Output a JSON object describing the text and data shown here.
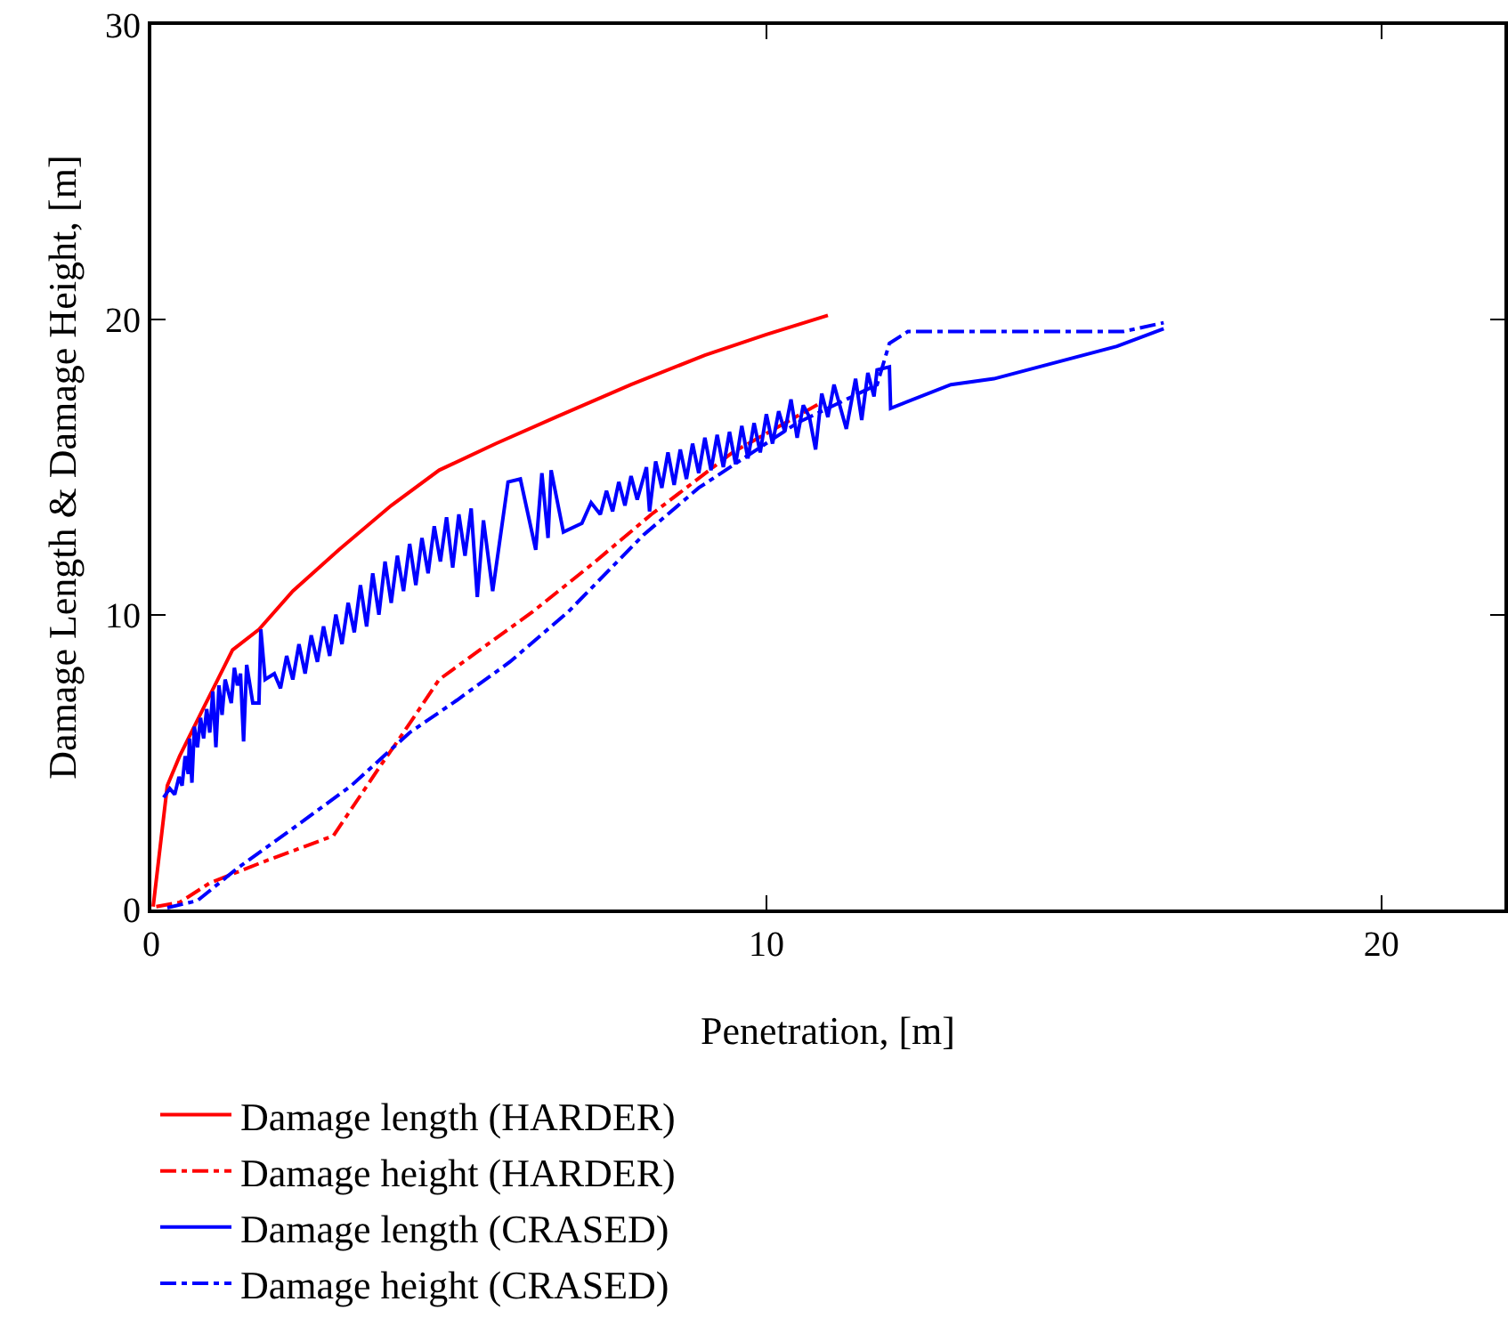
{
  "chart_data": {
    "type": "line",
    "xlabel": "Penetration, [m]",
    "ylabel": "Damage Length & Damage Height, [m]",
    "xlim": [
      0,
      22
    ],
    "xticks": [
      0,
      10,
      20
    ],
    "ylim": [
      0,
      30
    ],
    "yticks": [
      0,
      10,
      20,
      30
    ],
    "legend": "bottom",
    "marker": "none",
    "series": [
      {
        "name": "Damage length (HARDER)",
        "color": "#ff0000",
        "line_style": "solid",
        "x": [
          0.03,
          0.26,
          0.46,
          0.84,
          1.32,
          1.75,
          2.3,
          3.05,
          3.9,
          4.68,
          5.6,
          6.58,
          7.8,
          9.0,
          10.0,
          11.0
        ],
        "values": [
          0.1,
          4.2,
          5.2,
          6.8,
          8.8,
          9.5,
          10.8,
          12.2,
          13.7,
          14.9,
          15.8,
          16.7,
          17.8,
          18.8,
          19.5,
          20.15
        ]
      },
      {
        "name": "Damage height (HARDER)",
        "color": "#ff0000",
        "line_style": "dashdot",
        "x": [
          0.08,
          0.46,
          0.95,
          1.8,
          2.96,
          3.7,
          4.1,
          4.68,
          5.34,
          6.2,
          7.16,
          8.13,
          9.45,
          10.9
        ],
        "values": [
          0.1,
          0.24,
          0.9,
          1.6,
          2.5,
          4.8,
          6.0,
          7.8,
          8.8,
          10.1,
          11.7,
          13.4,
          15.5,
          17.2
        ]
      },
      {
        "name": "Damage length (CRASED)",
        "color": "#0000ff",
        "line_style": "solid",
        "x": [
          0.2,
          0.3,
          0.38,
          0.45,
          0.5,
          0.55,
          0.6,
          0.62,
          0.66,
          0.7,
          0.75,
          0.8,
          0.85,
          0.9,
          0.95,
          1.0,
          1.05,
          1.1,
          1.15,
          1.2,
          1.3,
          1.35,
          1.4,
          1.45,
          1.5,
          1.55,
          1.65,
          1.75,
          1.78,
          1.85,
          2.0,
          2.1,
          2.2,
          2.3,
          2.4,
          2.5,
          2.6,
          2.7,
          2.8,
          2.9,
          3.0,
          3.1,
          3.2,
          3.3,
          3.4,
          3.5,
          3.6,
          3.7,
          3.8,
          3.9,
          4.0,
          4.1,
          4.2,
          4.3,
          4.4,
          4.5,
          4.6,
          4.7,
          4.8,
          4.9,
          5.0,
          5.1,
          5.2,
          5.3,
          5.4,
          5.55,
          5.8,
          6.0,
          6.25,
          6.35,
          6.45,
          6.5,
          6.7,
          7.0,
          7.15,
          7.3,
          7.4,
          7.5,
          7.6,
          7.7,
          7.8,
          7.9,
          8.05,
          8.1,
          8.2,
          8.3,
          8.4,
          8.5,
          8.6,
          8.7,
          8.8,
          8.9,
          9.0,
          9.1,
          9.2,
          9.3,
          9.4,
          9.5,
          9.6,
          9.7,
          9.8,
          9.9,
          10.0,
          10.1,
          10.2,
          10.3,
          10.4,
          10.5,
          10.6,
          10.7,
          10.8,
          10.9,
          11.0,
          11.1,
          11.3,
          11.45,
          11.55,
          11.65,
          11.75,
          11.8,
          12.0,
          12.02,
          13.0,
          13.7,
          15.7,
          16.46
        ],
        "values": [
          3.8,
          4.1,
          3.9,
          4.5,
          4.2,
          5.2,
          4.6,
          5.8,
          4.3,
          6.2,
          5.5,
          6.5,
          5.8,
          6.8,
          6.0,
          7.4,
          5.5,
          7.6,
          6.6,
          7.8,
          7.0,
          8.2,
          7.6,
          8.0,
          5.7,
          8.3,
          7.0,
          7.0,
          9.5,
          7.8,
          8.0,
          7.5,
          8.6,
          7.8,
          9.0,
          8.0,
          9.3,
          8.4,
          9.6,
          8.6,
          10.0,
          9.0,
          10.4,
          9.4,
          11.0,
          9.6,
          11.4,
          10.0,
          11.8,
          10.4,
          12.0,
          10.8,
          12.4,
          11.0,
          12.6,
          11.4,
          13.0,
          11.8,
          13.3,
          11.6,
          13.4,
          12.0,
          13.6,
          10.6,
          13.2,
          10.8,
          14.5,
          14.6,
          12.2,
          14.8,
          12.6,
          14.9,
          12.8,
          13.1,
          13.8,
          13.4,
          14.2,
          13.5,
          14.5,
          13.7,
          14.7,
          13.9,
          15.0,
          13.5,
          15.2,
          14.3,
          15.5,
          14.4,
          15.6,
          14.6,
          15.8,
          14.8,
          16.0,
          14.9,
          16.1,
          15.0,
          16.2,
          15.1,
          16.4,
          15.3,
          16.5,
          15.5,
          16.8,
          15.8,
          16.9,
          16.2,
          17.3,
          16.0,
          17.1,
          16.7,
          15.6,
          17.5,
          16.7,
          17.8,
          16.3,
          18.0,
          16.6,
          18.2,
          17.4,
          18.3,
          18.4,
          17.0,
          17.8,
          18.0,
          19.1,
          19.7
        ]
      },
      {
        "name": "Damage height (CRASED)",
        "color": "#0000ff",
        "line_style": "dashdot",
        "x": [
          0.26,
          0.75,
          1.4,
          2.27,
          3.25,
          4.2,
          4.97,
          5.83,
          6.78,
          8.0,
          8.9,
          10.5,
          11.8,
          12.0,
          12.3,
          15.8,
          16.46
        ],
        "values": [
          0.06,
          0.3,
          1.4,
          2.7,
          4.2,
          6.0,
          7.1,
          8.4,
          10.1,
          12.7,
          14.3,
          16.5,
          17.8,
          19.2,
          19.6,
          19.6,
          19.9
        ]
      }
    ]
  }
}
